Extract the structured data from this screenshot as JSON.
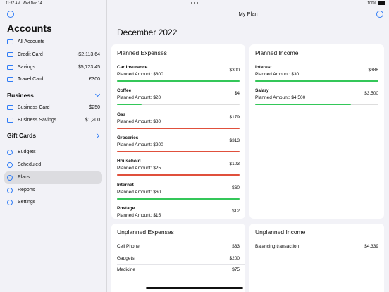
{
  "status_bar": {
    "time": "11:37 AM",
    "date": "Wed Dec 14",
    "battery": "100%"
  },
  "sidebar": {
    "title": "Accounts",
    "accounts": [
      {
        "name": "All Accounts"
      },
      {
        "name": "Credit Card",
        "balance": "-$2,113.64"
      },
      {
        "name": "Savings",
        "balance": "$5,723.45"
      },
      {
        "name": "Travel Card",
        "balance": "€300"
      }
    ],
    "business": {
      "title": "Business",
      "accounts": [
        {
          "name": "Business Card",
          "balance": "$250"
        },
        {
          "name": "Business Savings",
          "balance": "$1,200"
        }
      ]
    },
    "gift_cards": {
      "title": "Gift Cards"
    },
    "menu": [
      "Budgets",
      "Scheduled",
      "Plans",
      "Reports",
      "Settings"
    ],
    "selected_menu": "Plans"
  },
  "header": {
    "title": "My Plan"
  },
  "period": "December 2022",
  "planned_expenses": {
    "title": "Planned Expenses",
    "rows": [
      {
        "name": "Car Insurance",
        "planned": "Planned Amount: $300",
        "amount": "$300"
      },
      {
        "name": "Coffee",
        "planned": "Planned Amount: $20",
        "amount": "$4"
      },
      {
        "name": "Gas",
        "planned": "Planned Amount: $80",
        "amount": "$179"
      },
      {
        "name": "Groceries",
        "planned": "Planned Amount: $200",
        "amount": "$313"
      },
      {
        "name": "Household",
        "planned": "Planned Amount: $25",
        "amount": "$103"
      },
      {
        "name": "Internet",
        "planned": "Planned Amount: $60",
        "amount": "$60"
      },
      {
        "name": "Postage",
        "planned": "Planned Amount: $15",
        "amount": "$12"
      }
    ]
  },
  "planned_income": {
    "title": "Planned Income",
    "rows": [
      {
        "name": "Interest",
        "planned": "Planned Amount: $30",
        "amount": "$388"
      },
      {
        "name": "Salary",
        "planned": "Planned Amount: $4,500",
        "amount": "$3,500"
      }
    ]
  },
  "unplanned_expenses": {
    "title": "Unplanned Expenses",
    "rows": [
      {
        "name": "Cell Phone",
        "amount": "$33"
      },
      {
        "name": "Gadgets",
        "amount": "$200"
      },
      {
        "name": "Medicine",
        "amount": "$75"
      }
    ]
  },
  "unplanned_income": {
    "title": "Unplanned Income",
    "rows": [
      {
        "name": "Balancing transaction",
        "amount": "$4,339"
      }
    ]
  }
}
